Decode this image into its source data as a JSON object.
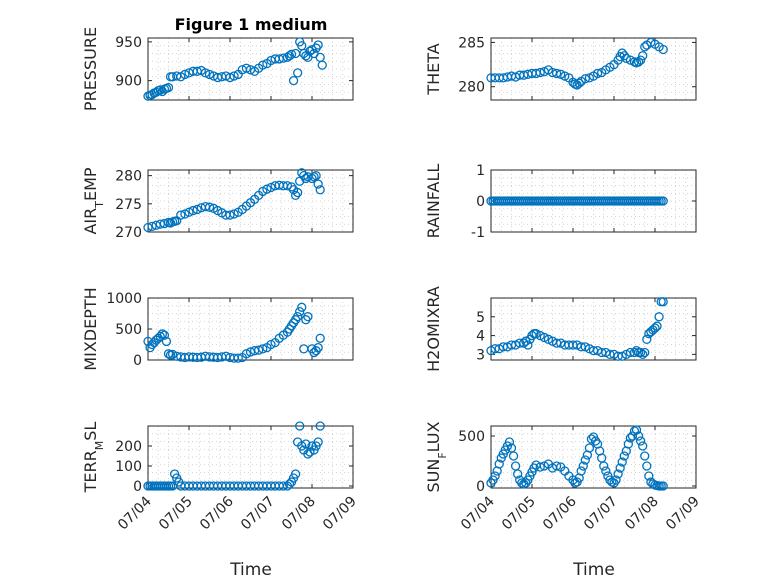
{
  "figure": {
    "title": "Figure 1 medium",
    "bg": "#ffffff"
  },
  "style": {
    "marker_color": "#0072BD",
    "axis_color": "#262626",
    "grid_color": "#c8c8c8"
  },
  "x_axis": {
    "label": "Time",
    "ticks": [
      "07/04",
      "07/05",
      "07/06",
      "07/07",
      "07/08",
      "07/09"
    ],
    "range_days": [
      0,
      5
    ]
  },
  "chart_data": [
    {
      "type": "scatter",
      "name_label": "PRESSURE",
      "title": "Figure 1 medium",
      "ylim": [
        875,
        955
      ],
      "yticks": [
        {
          "v": 900,
          "t": "900"
        },
        {
          "v": 950,
          "t": "950"
        }
      ],
      "x": [
        0.0,
        0.05,
        0.1,
        0.15,
        0.2,
        0.25,
        0.3,
        0.35,
        0.4,
        0.45,
        0.5,
        0.55,
        0.6,
        0.7,
        0.8,
        0.9,
        1.0,
        1.1,
        1.2,
        1.3,
        1.4,
        1.5,
        1.6,
        1.7,
        1.8,
        1.9,
        2.0,
        2.1,
        2.2,
        2.3,
        2.4,
        2.5,
        2.6,
        2.7,
        2.8,
        2.9,
        3.0,
        3.1,
        3.2,
        3.3,
        3.4,
        3.45,
        3.5,
        3.55,
        3.6,
        3.65,
        3.7,
        3.75,
        3.8,
        3.85,
        3.9,
        3.95,
        4.0,
        4.05,
        4.1,
        4.15,
        4.2,
        4.25
      ],
      "y": [
        880,
        881,
        882,
        884,
        885,
        887,
        888,
        886,
        889,
        890,
        891,
        905,
        905,
        906,
        905,
        908,
        910,
        912,
        912,
        913,
        910,
        908,
        906,
        904,
        905,
        906,
        904,
        906,
        908,
        914,
        916,
        914,
        912,
        916,
        920,
        922,
        926,
        928,
        928,
        929,
        930,
        932,
        934,
        900,
        935,
        910,
        950,
        945,
        935,
        932,
        930,
        938,
        940,
        935,
        942,
        946,
        930,
        920
      ]
    },
    {
      "type": "scatter",
      "name_label": "THETA",
      "ylim": [
        278.5,
        285.5
      ],
      "yticks": [
        {
          "v": 280,
          "t": "280"
        },
        {
          "v": 285,
          "t": "285"
        }
      ],
      "x": [
        0.0,
        0.1,
        0.2,
        0.3,
        0.4,
        0.5,
        0.6,
        0.7,
        0.8,
        0.9,
        1.0,
        1.1,
        1.2,
        1.3,
        1.4,
        1.5,
        1.6,
        1.7,
        1.8,
        1.9,
        2.0,
        2.05,
        2.1,
        2.15,
        2.2,
        2.3,
        2.4,
        2.5,
        2.6,
        2.7,
        2.8,
        2.9,
        3.0,
        3.1,
        3.15,
        3.2,
        3.25,
        3.3,
        3.4,
        3.5,
        3.55,
        3.6,
        3.65,
        3.7,
        3.75,
        3.8,
        3.9,
        4.0,
        4.1,
        4.2
      ],
      "y": [
        281.0,
        281.0,
        281.0,
        281.0,
        281.1,
        281.2,
        281.1,
        281.3,
        281.3,
        281.4,
        281.5,
        281.5,
        281.6,
        281.7,
        281.9,
        281.6,
        281.5,
        281.4,
        281.2,
        281.0,
        280.5,
        280.3,
        280.2,
        280.4,
        280.6,
        280.9,
        281.0,
        281.2,
        281.5,
        281.6,
        281.9,
        282.2,
        282.5,
        283.0,
        283.4,
        283.8,
        283.5,
        283.2,
        283.0,
        282.8,
        282.7,
        282.8,
        283.0,
        283.5,
        284.5,
        284.7,
        285.0,
        284.8,
        284.5,
        284.2
      ]
    },
    {
      "type": "scatter",
      "name_label": "AIR",
      "name_sub": "T",
      "name_rest": "EMP",
      "ylim": [
        270,
        281
      ],
      "yticks": [
        {
          "v": 270,
          "t": "270"
        },
        {
          "v": 275,
          "t": "275"
        },
        {
          "v": 280,
          "t": "280"
        }
      ],
      "x": [
        0.0,
        0.1,
        0.2,
        0.3,
        0.4,
        0.5,
        0.55,
        0.6,
        0.65,
        0.7,
        0.8,
        0.9,
        1.0,
        1.1,
        1.2,
        1.3,
        1.4,
        1.5,
        1.6,
        1.7,
        1.8,
        1.9,
        2.0,
        2.1,
        2.2,
        2.3,
        2.4,
        2.5,
        2.6,
        2.7,
        2.8,
        2.9,
        3.0,
        3.1,
        3.2,
        3.3,
        3.4,
        3.5,
        3.55,
        3.6,
        3.65,
        3.7,
        3.75,
        3.8,
        3.85,
        3.9,
        4.0,
        4.05,
        4.1,
        4.15,
        4.2
      ],
      "y": [
        270.8,
        271.0,
        271.2,
        271.4,
        271.5,
        271.7,
        271.6,
        271.8,
        271.9,
        272.0,
        273.0,
        273.2,
        273.5,
        273.8,
        274.0,
        274.3,
        274.5,
        274.4,
        274.2,
        273.8,
        273.4,
        273.0,
        273.0,
        273.2,
        273.5,
        274.0,
        274.6,
        275.2,
        275.8,
        276.5,
        277.2,
        277.6,
        277.9,
        278.2,
        278.3,
        278.2,
        278.2,
        278.0,
        277.5,
        276.5,
        277.0,
        279.0,
        280.5,
        280.0,
        279.5,
        279.8,
        279.5,
        279.8,
        280.0,
        278.5,
        277.5
      ]
    },
    {
      "type": "scatter",
      "name_label": "RAINFALL",
      "ylim": [
        -1,
        1
      ],
      "yticks": [
        {
          "v": -1,
          "t": "-1"
        },
        {
          "v": 0,
          "t": "0"
        },
        {
          "v": 1,
          "t": "1"
        }
      ],
      "x_start": 0,
      "x_end": 4.2,
      "x_step": 0.05,
      "constant": 0
    },
    {
      "type": "scatter",
      "name_label": "MIXDEPTH",
      "ylim": [
        0,
        1000
      ],
      "yticks": [
        {
          "v": 0,
          "t": "0"
        },
        {
          "v": 500,
          "t": "500"
        },
        {
          "v": 1000,
          "t": "1000"
        }
      ],
      "x": [
        0.0,
        0.05,
        0.1,
        0.15,
        0.2,
        0.25,
        0.3,
        0.35,
        0.4,
        0.45,
        0.5,
        0.55,
        0.6,
        0.7,
        0.8,
        0.9,
        1.0,
        1.1,
        1.2,
        1.3,
        1.4,
        1.5,
        1.6,
        1.7,
        1.8,
        1.9,
        2.0,
        2.1,
        2.2,
        2.3,
        2.4,
        2.5,
        2.6,
        2.7,
        2.8,
        2.9,
        3.0,
        3.1,
        3.2,
        3.3,
        3.4,
        3.45,
        3.5,
        3.55,
        3.6,
        3.65,
        3.7,
        3.75,
        3.8,
        3.85,
        3.9,
        4.0,
        4.05,
        4.1,
        4.15,
        4.2
      ],
      "y": [
        300,
        200,
        250,
        280,
        320,
        350,
        380,
        420,
        400,
        300,
        100,
        80,
        90,
        60,
        50,
        40,
        50,
        45,
        40,
        45,
        60,
        50,
        45,
        40,
        50,
        60,
        40,
        30,
        30,
        40,
        100,
        130,
        150,
        160,
        180,
        200,
        250,
        280,
        350,
        400,
        450,
        500,
        550,
        600,
        650,
        700,
        780,
        850,
        180,
        650,
        700,
        180,
        120,
        150,
        200,
        350
      ]
    },
    {
      "type": "scatter",
      "name_label": "H2OMIXRA",
      "ylim": [
        2.7,
        6.0
      ],
      "yticks": [
        {
          "v": 3,
          "t": "3"
        },
        {
          "v": 4,
          "t": "4"
        },
        {
          "v": 5,
          "t": "5"
        }
      ],
      "x": [
        0.0,
        0.1,
        0.2,
        0.3,
        0.4,
        0.5,
        0.6,
        0.7,
        0.8,
        0.85,
        0.9,
        0.95,
        1.0,
        1.05,
        1.1,
        1.2,
        1.3,
        1.4,
        1.5,
        1.6,
        1.7,
        1.8,
        1.9,
        2.0,
        2.1,
        2.2,
        2.3,
        2.4,
        2.5,
        2.6,
        2.7,
        2.8,
        2.9,
        3.0,
        3.1,
        3.2,
        3.3,
        3.4,
        3.5,
        3.55,
        3.6,
        3.65,
        3.7,
        3.75,
        3.8,
        3.85,
        3.9,
        3.95,
        4.0,
        4.05,
        4.1,
        4.15,
        4.2
      ],
      "y": [
        3.2,
        3.3,
        3.3,
        3.4,
        3.4,
        3.5,
        3.5,
        3.6,
        3.6,
        3.7,
        3.5,
        3.8,
        4.0,
        4.1,
        4.1,
        4.0,
        3.9,
        3.8,
        3.7,
        3.6,
        3.6,
        3.5,
        3.5,
        3.5,
        3.5,
        3.4,
        3.4,
        3.3,
        3.2,
        3.2,
        3.1,
        3.1,
        3.0,
        3.0,
        2.9,
        2.9,
        3.0,
        3.1,
        3.1,
        3.2,
        3.1,
        3.1,
        3.0,
        3.1,
        3.8,
        4.1,
        4.2,
        4.3,
        4.4,
        4.5,
        5.0,
        5.8,
        5.8
      ]
    },
    {
      "type": "scatter",
      "name_label": "TERR",
      "name_sub": "M",
      "name_rest": "SL",
      "ylim": [
        -10,
        300
      ],
      "yticks": [
        {
          "v": 0,
          "t": "0"
        },
        {
          "v": 100,
          "t": "100"
        },
        {
          "v": 200,
          "t": "200"
        }
      ],
      "x": [
        0.0,
        0.05,
        0.1,
        0.15,
        0.2,
        0.25,
        0.3,
        0.35,
        0.4,
        0.45,
        0.5,
        0.55,
        0.6,
        0.65,
        0.7,
        0.75,
        0.8,
        0.9,
        1.0,
        1.1,
        1.2,
        1.3,
        1.4,
        1.5,
        1.6,
        1.7,
        1.8,
        1.9,
        2.0,
        2.1,
        2.2,
        2.3,
        2.4,
        2.5,
        2.6,
        2.7,
        2.8,
        2.9,
        3.0,
        3.1,
        3.2,
        3.3,
        3.4,
        3.45,
        3.5,
        3.55,
        3.6,
        3.65,
        3.7,
        3.75,
        3.8,
        3.85,
        3.9,
        3.95,
        4.0,
        4.05,
        4.1,
        4.15,
        4.2
      ],
      "y": [
        0,
        0,
        0,
        0,
        0,
        0,
        0,
        0,
        0,
        0,
        0,
        0,
        0,
        60,
        40,
        20,
        0,
        0,
        0,
        0,
        0,
        0,
        0,
        0,
        0,
        0,
        0,
        0,
        0,
        0,
        0,
        0,
        0,
        0,
        0,
        0,
        0,
        0,
        0,
        0,
        0,
        0,
        0,
        10,
        20,
        40,
        60,
        220,
        300,
        200,
        180,
        210,
        160,
        170,
        200,
        180,
        200,
        220,
        300
      ]
    },
    {
      "type": "scatter",
      "name_label": "SUN",
      "name_sub": "F",
      "name_rest": "LUX",
      "ylim": [
        -20,
        600
      ],
      "yticks": [
        {
          "v": 0,
          "t": "0"
        },
        {
          "v": 500,
          "t": "500"
        }
      ],
      "x": [
        0.0,
        0.05,
        0.1,
        0.15,
        0.2,
        0.25,
        0.3,
        0.35,
        0.4,
        0.45,
        0.5,
        0.55,
        0.6,
        0.65,
        0.7,
        0.75,
        0.8,
        0.85,
        0.9,
        0.95,
        1.0,
        1.05,
        1.1,
        1.2,
        1.3,
        1.4,
        1.5,
        1.6,
        1.7,
        1.8,
        1.9,
        2.0,
        2.05,
        2.1,
        2.15,
        2.2,
        2.25,
        2.3,
        2.35,
        2.4,
        2.45,
        2.5,
        2.55,
        2.6,
        2.65,
        2.7,
        2.75,
        2.8,
        2.85,
        2.9,
        2.95,
        3.0,
        3.05,
        3.1,
        3.15,
        3.2,
        3.25,
        3.3,
        3.35,
        3.4,
        3.45,
        3.5,
        3.55,
        3.6,
        3.65,
        3.7,
        3.75,
        3.8,
        3.85,
        3.9,
        3.95,
        4.0,
        4.05,
        4.1,
        4.15,
        4.2
      ],
      "y": [
        30,
        60,
        100,
        150,
        220,
        280,
        320,
        360,
        400,
        440,
        380,
        300,
        200,
        120,
        60,
        30,
        20,
        30,
        60,
        100,
        140,
        180,
        210,
        190,
        200,
        220,
        180,
        200,
        190,
        150,
        100,
        60,
        30,
        40,
        80,
        150,
        200,
        260,
        310,
        380,
        470,
        490,
        450,
        420,
        350,
        280,
        200,
        150,
        100,
        60,
        40,
        30,
        60,
        120,
        180,
        240,
        300,
        350,
        420,
        480,
        500,
        550,
        560,
        500,
        450,
        400,
        300,
        200,
        100,
        40,
        20,
        10,
        5,
        0,
        0,
        0
      ]
    }
  ]
}
